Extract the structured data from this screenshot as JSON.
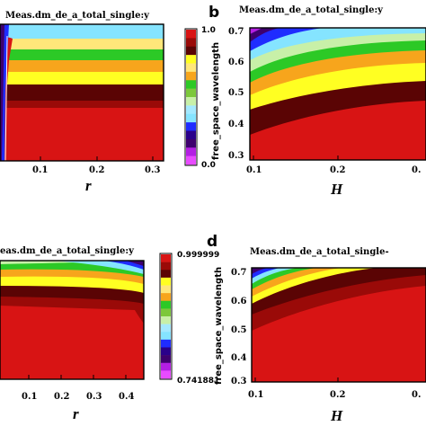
{
  "colors": {
    "palette": [
      "#d81414",
      "#9a0a08",
      "#5a0404",
      "#ffff22",
      "#ffe77a",
      "#f7a51c",
      "#2cc926",
      "#7cc83b",
      "#c8f0a8",
      "#a4e9ff",
      "#85e4ff",
      "#1f2cff",
      "#2a008a",
      "#3e006e",
      "#b31fe3",
      "#e84bff"
    ]
  },
  "chart_data": [
    {
      "panel": "a",
      "type": "heatmap",
      "title": "Meas.dm_de_a_total_single:y",
      "xlabel": "r",
      "ylabel": "",
      "xticks": [
        "0.1",
        "0.2",
        "0.3"
      ],
      "xlim": [
        0.0,
        0.31
      ],
      "colorbar": {
        "max": "1.0",
        "min": "0.0",
        "levels": 16
      },
      "letter_visible": false
    },
    {
      "panel": "b",
      "type": "heatmap",
      "title": "Meas.dm_de_a_total_single:y",
      "xlabel": "H",
      "ylabel": "free_space_wavelength",
      "xticks": [
        "0.1",
        "0.2",
        "0."
      ],
      "yticks": [
        "0.7",
        "0.6",
        "0.5",
        "0.4",
        "0.3"
      ],
      "xlim": [
        0.1,
        0.3
      ],
      "ylim": [
        0.3,
        0.7
      ],
      "letter": "b"
    },
    {
      "panel": "c",
      "type": "heatmap",
      "title": "eas.dm_de_a_total_single:y",
      "xlabel": "r",
      "ylabel": "",
      "xticks": [
        "0.1",
        "0.2",
        "0.3",
        "0.4"
      ],
      "xlim": [
        0.0,
        0.42
      ],
      "colorbar": {
        "max": "0.999999",
        "min": "0.741881",
        "levels": 16
      }
    },
    {
      "panel": "d",
      "type": "heatmap",
      "title": "Meas.dm_de_a_total_single-",
      "xlabel": "H",
      "ylabel": "free_space_wavelength",
      "xticks": [
        "0.1",
        "0.2",
        "0."
      ],
      "yticks": [
        "0.7",
        "0.6",
        "0.5",
        "0.4",
        "0.3"
      ],
      "xlim": [
        0.1,
        0.3
      ],
      "ylim": [
        0.3,
        0.7
      ],
      "letter": "d"
    }
  ]
}
